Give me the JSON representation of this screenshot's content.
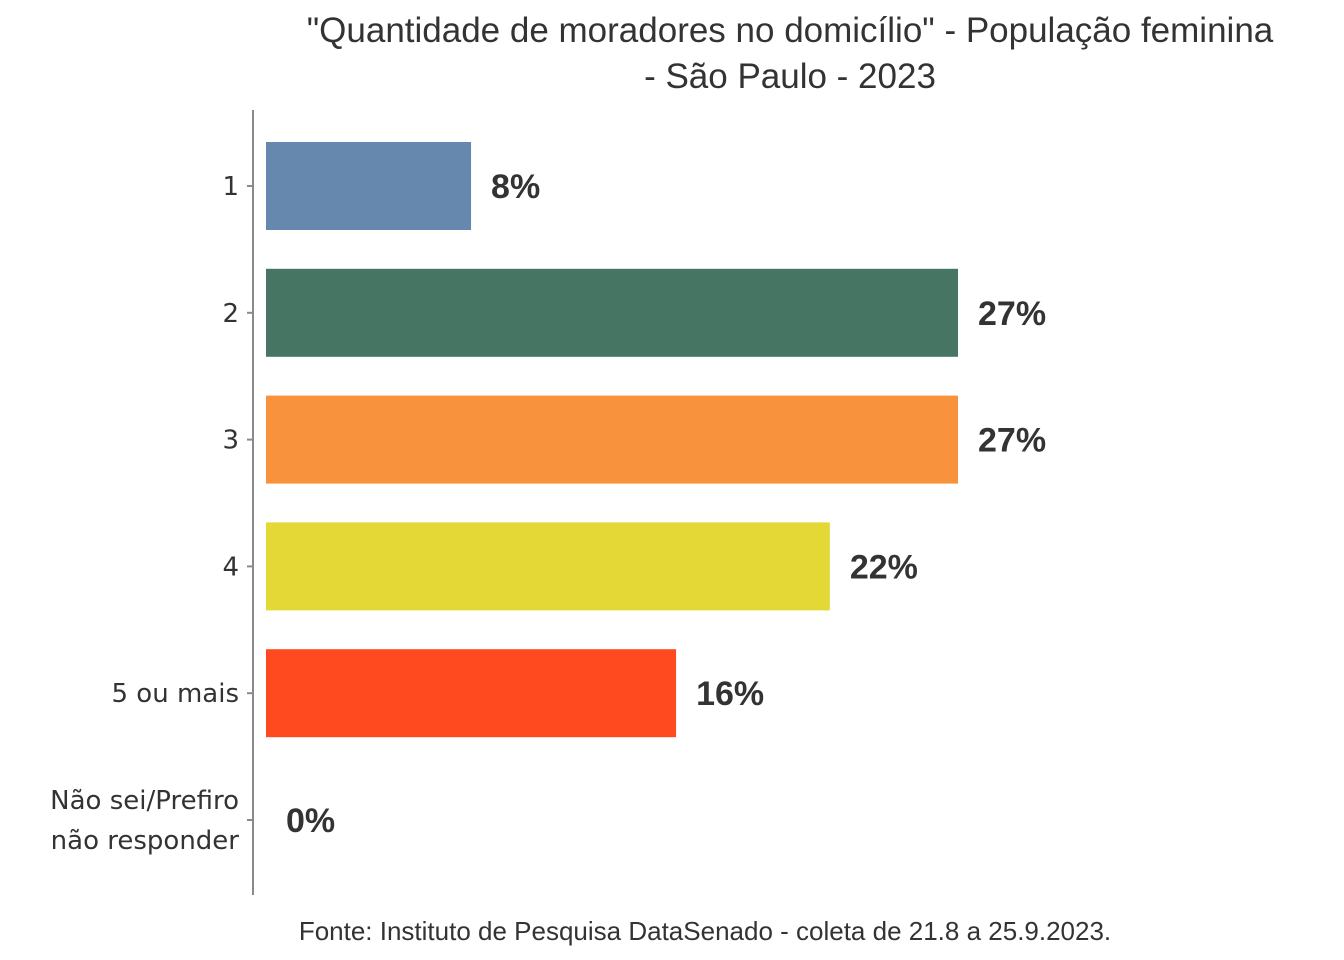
{
  "chart_data": {
    "type": "bar",
    "orientation": "horizontal",
    "title_lines": [
      "\"Quantidade de moradores no domicílio\" - População feminina",
      "- São Paulo - 2023"
    ],
    "categories": [
      [
        "1"
      ],
      [
        "2"
      ],
      [
        "3"
      ],
      [
        "4"
      ],
      [
        "5 ou mais"
      ],
      [
        "Não sei/Prefiro",
        "não responder"
      ]
    ],
    "values": [
      8,
      27,
      27,
      22,
      16,
      0
    ],
    "data_labels": [
      "8%",
      "27%",
      "27%",
      "22%",
      "16%",
      "0%"
    ],
    "colors": [
      "#6688AE",
      "#467563",
      "#F9923C",
      "#E4D836",
      "#FF4A20",
      "#9B9B9B"
    ],
    "xlabel": "",
    "ylabel": "",
    "xlim": [
      0,
      27
    ],
    "grid": false,
    "legend": "none",
    "caption": "Fonte: Instituto de Pesquisa DataSenado - coleta de 21.8 a 25.9.2023."
  }
}
